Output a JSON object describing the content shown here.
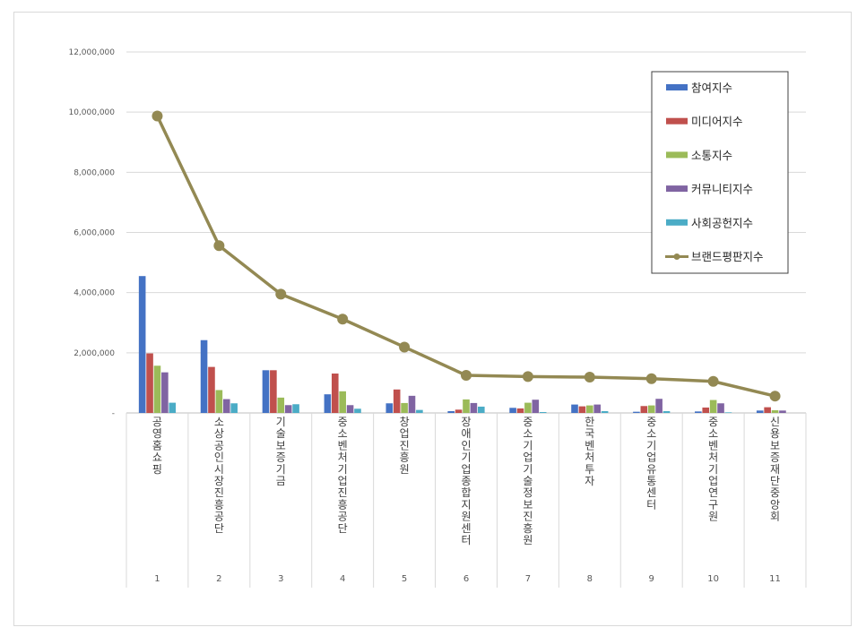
{
  "chart_data": {
    "type": "bar",
    "title": "",
    "xlabel": "",
    "ylabel": "",
    "ylim": [
      0,
      12000000
    ],
    "yticks": [
      {
        "value": 0,
        "label": "-"
      },
      {
        "value": 2000000,
        "label": "2,000,000"
      },
      {
        "value": 4000000,
        "label": "4,000,000"
      },
      {
        "value": 6000000,
        "label": "6,000,000"
      },
      {
        "value": 8000000,
        "label": "8,000,000"
      },
      {
        "value": 10000000,
        "label": "10,000,000"
      },
      {
        "value": 12000000,
        "label": "12,000,000"
      }
    ],
    "grid": true,
    "legend_position": "top-right",
    "categories": [
      {
        "rank": "1",
        "name": "공영홈쇼핑"
      },
      {
        "rank": "2",
        "name": "소상공인시장진흥공단"
      },
      {
        "rank": "3",
        "name": "기술보증기금"
      },
      {
        "rank": "4",
        "name": "중소벤처기업진흥공단"
      },
      {
        "rank": "5",
        "name": "창업진흥원"
      },
      {
        "rank": "6",
        "name": "장애인기업종합지원센터"
      },
      {
        "rank": "7",
        "name": "중소기업기술정보진흥원"
      },
      {
        "rank": "8",
        "name": "한국벤처투자"
      },
      {
        "rank": "9",
        "name": "중소기업유통센터"
      },
      {
        "rank": "10",
        "name": "중소벤처기업연구원"
      },
      {
        "rank": "11",
        "name": "신용보증재단중앙회"
      }
    ],
    "series": [
      {
        "name": "참여지수",
        "kind": "bar",
        "color": "#4472c4",
        "values": [
          4550000,
          2420000,
          1420000,
          620000,
          320000,
          60000,
          170000,
          280000,
          40000,
          50000,
          80000
        ]
      },
      {
        "name": "미디어지수",
        "kind": "bar",
        "color": "#c0504d",
        "values": [
          1980000,
          1530000,
          1420000,
          1310000,
          780000,
          110000,
          150000,
          220000,
          230000,
          180000,
          190000
        ]
      },
      {
        "name": "소통지수",
        "kind": "bar",
        "color": "#9bbb59",
        "values": [
          1570000,
          760000,
          510000,
          720000,
          330000,
          450000,
          340000,
          250000,
          250000,
          430000,
          90000
        ]
      },
      {
        "name": "커뮤니티지수",
        "kind": "bar",
        "color": "#8064a2",
        "values": [
          1350000,
          460000,
          260000,
          260000,
          570000,
          330000,
          440000,
          280000,
          470000,
          320000,
          80000
        ]
      },
      {
        "name": "사회공헌지수",
        "kind": "bar",
        "color": "#4bacc6",
        "values": [
          340000,
          320000,
          290000,
          140000,
          100000,
          210000,
          30000,
          60000,
          60000,
          20000,
          0
        ]
      },
      {
        "name": "브랜드평판지수",
        "kind": "line",
        "color": "#938953",
        "values": [
          9870000,
          5560000,
          3950000,
          3120000,
          2190000,
          1250000,
          1210000,
          1190000,
          1140000,
          1050000,
          560000
        ]
      }
    ]
  }
}
